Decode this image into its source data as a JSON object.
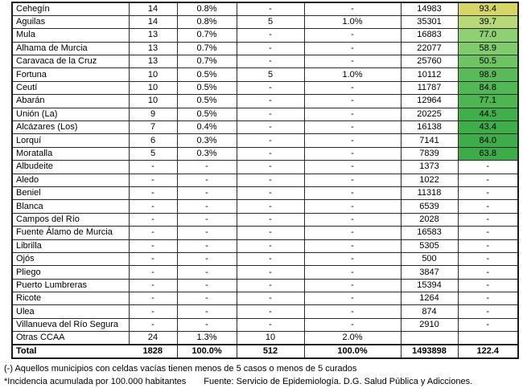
{
  "table": {
    "rows": [
      {
        "municipality": "Cehegín",
        "cases": "14",
        "cases_pct": "0.8%",
        "cured": "-",
        "cured_pct": "-",
        "population": "14983",
        "incidence": "93.4",
        "incidence_color": "#d6d567"
      },
      {
        "municipality": "Aguilas",
        "cases": "14",
        "cases_pct": "0.8%",
        "cured": "5",
        "cured_pct": "1.0%",
        "population": "35301",
        "incidence": "39.7",
        "incidence_color": "#b8d977"
      },
      {
        "municipality": "Mula",
        "cases": "13",
        "cases_pct": "0.7%",
        "cured": "-",
        "cured_pct": "-",
        "population": "16883",
        "incidence": "77.0",
        "incidence_color": "#8ed073"
      },
      {
        "municipality": "Alhama de Murcia",
        "cases": "13",
        "cases_pct": "0.7%",
        "cured": "-",
        "cured_pct": "-",
        "population": "22077",
        "incidence": "58.9",
        "incidence_color": "#80cb6c"
      },
      {
        "municipality": "Caravaca de la Cruz",
        "cases": "13",
        "cases_pct": "0.7%",
        "cured": "-",
        "cured_pct": "-",
        "population": "25760",
        "incidence": "50.5",
        "incidence_color": "#6ec463"
      },
      {
        "municipality": "Fortuna",
        "cases": "10",
        "cases_pct": "0.5%",
        "cured": "5",
        "cured_pct": "1.0%",
        "population": "10112",
        "incidence": "98.9",
        "incidence_color": "#58ba59"
      },
      {
        "municipality": "Ceutí",
        "cases": "10",
        "cases_pct": "0.5%",
        "cured": "-",
        "cured_pct": "-",
        "population": "11787",
        "incidence": "84.8",
        "incidence_color": "#52b755"
      },
      {
        "municipality": "Abarán",
        "cases": "10",
        "cases_pct": "0.5%",
        "cured": "-",
        "cured_pct": "-",
        "population": "12964",
        "incidence": "77.1",
        "incidence_color": "#4eb552"
      },
      {
        "municipality": "Unión (La)",
        "cases": "9",
        "cases_pct": "0.5%",
        "cured": "-",
        "cured_pct": "-",
        "population": "20225",
        "incidence": "44.5",
        "incidence_color": "#40ae4b"
      },
      {
        "municipality": "Alcázares (Los)",
        "cases": "7",
        "cases_pct": "0.4%",
        "cured": "-",
        "cured_pct": "-",
        "population": "16138",
        "incidence": "43.4",
        "incidence_color": "#3fad4a"
      },
      {
        "municipality": "Lorquí",
        "cases": "6",
        "cases_pct": "0.3%",
        "cured": "-",
        "cured_pct": "-",
        "population": "7141",
        "incidence": "84.0",
        "incidence_color": "#3dac49"
      },
      {
        "municipality": "Moratalla",
        "cases": "5",
        "cases_pct": "0.3%",
        "cured": "-",
        "cured_pct": "-",
        "population": "7839",
        "incidence": "63.8",
        "incidence_color": "#3cab48"
      },
      {
        "municipality": "Albudeite",
        "cases": "-",
        "cases_pct": "-",
        "cured": "-",
        "cured_pct": "-",
        "population": "1373",
        "incidence": "-",
        "incidence_color": ""
      },
      {
        "municipality": "Aledo",
        "cases": "-",
        "cases_pct": "-",
        "cured": "-",
        "cured_pct": "-",
        "population": "1022",
        "incidence": "-",
        "incidence_color": ""
      },
      {
        "municipality": "Beniel",
        "cases": "-",
        "cases_pct": "-",
        "cured": "-",
        "cured_pct": "-",
        "population": "11318",
        "incidence": "-",
        "incidence_color": ""
      },
      {
        "municipality": "Blanca",
        "cases": "-",
        "cases_pct": "-",
        "cured": "-",
        "cured_pct": "-",
        "population": "6539",
        "incidence": "-",
        "incidence_color": ""
      },
      {
        "municipality": "Campos del Río",
        "cases": "-",
        "cases_pct": "-",
        "cured": "-",
        "cured_pct": "-",
        "population": "2028",
        "incidence": "-",
        "incidence_color": ""
      },
      {
        "municipality": "Fuente Álamo de Murcia",
        "cases": "-",
        "cases_pct": "-",
        "cured": "-",
        "cured_pct": "-",
        "population": "16583",
        "incidence": "-",
        "incidence_color": ""
      },
      {
        "municipality": "Librilla",
        "cases": "-",
        "cases_pct": "-",
        "cured": "-",
        "cured_pct": "-",
        "population": "5305",
        "incidence": "-",
        "incidence_color": ""
      },
      {
        "municipality": "Ojós",
        "cases": "-",
        "cases_pct": "-",
        "cured": "-",
        "cured_pct": "-",
        "population": "500",
        "incidence": "-",
        "incidence_color": ""
      },
      {
        "municipality": "Pliego",
        "cases": "-",
        "cases_pct": "-",
        "cured": "-",
        "cured_pct": "-",
        "population": "3847",
        "incidence": "-",
        "incidence_color": ""
      },
      {
        "municipality": "Puerto Lumbreras",
        "cases": "-",
        "cases_pct": "-",
        "cured": "-",
        "cured_pct": "-",
        "population": "15394",
        "incidence": "-",
        "incidence_color": ""
      },
      {
        "municipality": "Ricote",
        "cases": "-",
        "cases_pct": "-",
        "cured": "-",
        "cured_pct": "-",
        "population": "1264",
        "incidence": "-",
        "incidence_color": ""
      },
      {
        "municipality": "Ulea",
        "cases": "-",
        "cases_pct": "-",
        "cured": "-",
        "cured_pct": "-",
        "population": "874",
        "incidence": "-",
        "incidence_color": ""
      },
      {
        "municipality": "Villanueva del Río Segura",
        "cases": "-",
        "cases_pct": "-",
        "cured": "-",
        "cured_pct": "-",
        "population": "2910",
        "incidence": "-",
        "incidence_color": ""
      },
      {
        "municipality": "Otras CCAA",
        "cases": "24",
        "cases_pct": "1.3%",
        "cured": "10",
        "cured_pct": "2.0%",
        "population": "",
        "incidence": "",
        "incidence_color": ""
      }
    ],
    "total": {
      "municipality": "Total",
      "cases": "1828",
      "cases_pct": "100.0%",
      "cured": "512",
      "cured_pct": "100.0%",
      "population": "1493898",
      "incidence": "122.4"
    }
  },
  "footnotes": {
    "line1": "(-) Aquellos municipios con celdas vacías tienen menos de 5 casos o menos de 5 curados",
    "line2_left": "*Incidencia acumulada por 100.000 habitantes",
    "line2_right": "Fuente: Servicio de Epidemiología. D.G. Salud Pública y Adicciones."
  }
}
